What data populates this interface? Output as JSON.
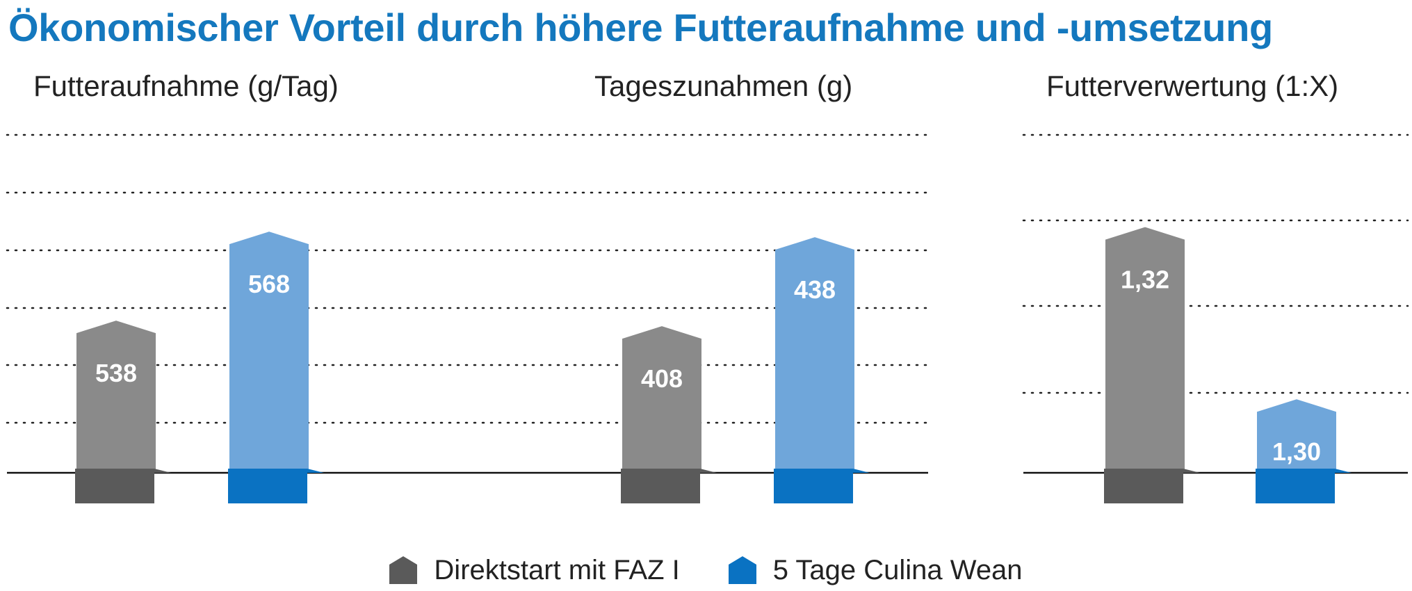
{
  "title": "Ökonomischer Vorteil durch höhere Futteraufnahme und -umsetzung",
  "colors": {
    "title": "#1478be",
    "series_a_bar": "#8a8a8a",
    "series_a_base": "#5a5a5a",
    "series_b_bar": "#6fa6da",
    "series_b_base": "#0a72c2"
  },
  "legend": [
    {
      "label": "Direktstart mit FAZ I"
    },
    {
      "label": "5 Tage Culina Wean"
    }
  ],
  "chart_data": [
    {
      "type": "bar",
      "title": "Futteraufnahme (g/Tag)",
      "series": [
        {
          "name": "Direktstart mit FAZ I",
          "values": [
            538
          ]
        },
        {
          "name": "5 Tage Culina Wean",
          "values": [
            568
          ]
        }
      ],
      "data_labels": [
        "538",
        "568"
      ],
      "grid": "dotted",
      "legend": "bottom-center"
    },
    {
      "type": "bar",
      "title": "Tageszunahmen (g)",
      "series": [
        {
          "name": "Direktstart mit FAZ I",
          "values": [
            408
          ]
        },
        {
          "name": "5 Tage Culina Wean",
          "values": [
            438
          ]
        }
      ],
      "data_labels": [
        "408",
        "438"
      ],
      "grid": "dotted",
      "legend": "bottom-center"
    },
    {
      "type": "bar",
      "title": "Futterverwertung (1:X)",
      "series": [
        {
          "name": "Direktstart mit FAZ I",
          "values": [
            1.32
          ]
        },
        {
          "name": "5 Tage Culina Wean",
          "values": [
            1.3
          ]
        }
      ],
      "data_labels": [
        "1,32",
        "1,30"
      ],
      "grid": "dotted",
      "legend": "bottom-center"
    }
  ]
}
